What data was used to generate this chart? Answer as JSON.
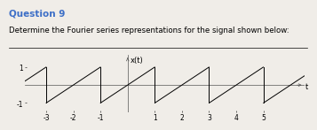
{
  "title": "Question 9",
  "subtitle": "Determine the Fourier series representations for the signal shown below:",
  "xlabel": "t",
  "ylabel": "x(t)",
  "period": 2,
  "amplitude": 1,
  "xlim": [
    -3.8,
    6.5
  ],
  "ylim": [
    -1.5,
    1.7
  ],
  "xticks_odd": [
    -3,
    -1,
    1,
    3,
    5
  ],
  "xticks_even": [
    -2,
    2,
    4
  ],
  "yticks": [
    -1,
    1
  ],
  "title_color": "#3d6fc7",
  "bg_color": "#f0ede8",
  "signal_color": "#000000",
  "axis_color": "#555555",
  "tick_fontsize": 5.5,
  "label_fontsize": 6,
  "title_fontsize": 7.5,
  "subtitle_fontsize": 6.2
}
